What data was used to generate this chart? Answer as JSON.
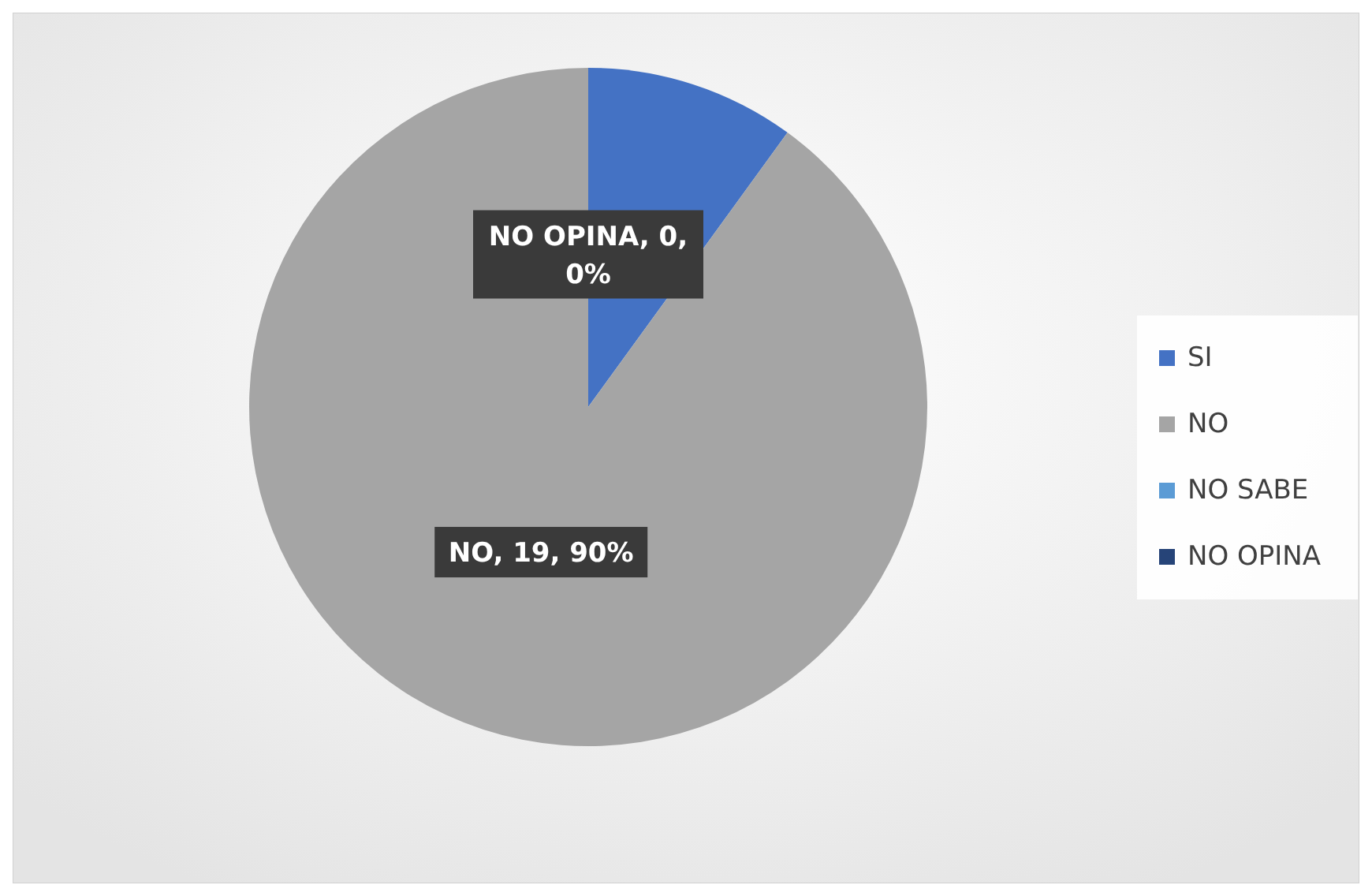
{
  "chart_data": {
    "type": "pie",
    "categories": [
      "SI",
      "NO",
      "NO SABE",
      "NO OPINA"
    ],
    "values": [
      10,
      90,
      0,
      0
    ],
    "colors": [
      "#4472c4",
      "#a5a5a5",
      "#5b9bd5",
      "#264478"
    ],
    "value_labels": [
      null,
      "NO, 19, 90%",
      null,
      "NO OPINA, 0, 0%"
    ],
    "legend": "right"
  }
}
